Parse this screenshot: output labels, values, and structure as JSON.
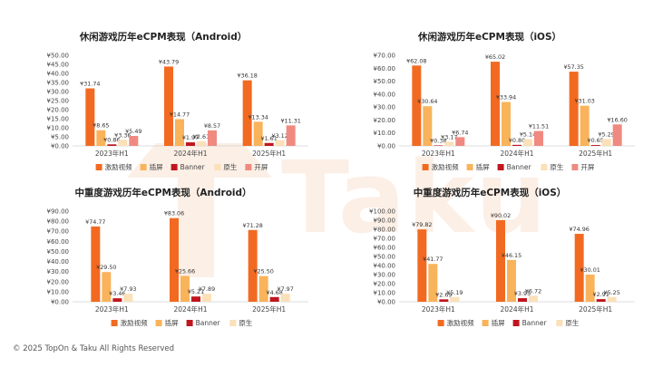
{
  "watermark": {
    "text": "Taku"
  },
  "footer": {
    "copyright": "© 2025 TopOn & Taku All Rights Reserved"
  },
  "colors": {
    "激励视频": "#F26A21",
    "插屏": "#F9B35B",
    "Banner": "#C0161E",
    "原生": "#FBE0B8",
    "开屏": "#F08A80"
  },
  "chart_data": [
    {
      "type": "bar",
      "title": "休闲游戏历年eCPM表现（Android）",
      "categories": [
        "2023年H1",
        "2024年H1",
        "2025年H1"
      ],
      "ylim": [
        0,
        50
      ],
      "yticks": [
        "¥0.00",
        "¥5.00",
        "¥10.00",
        "¥15.00",
        "¥20.00",
        "¥25.00",
        "¥30.00",
        "¥35.00",
        "¥40.00",
        "¥45.00",
        "¥50.00"
      ],
      "series": [
        {
          "name": "激励视频",
          "values": [
            31.74,
            43.79,
            36.18
          ],
          "labels": [
            "¥31.74",
            "¥43.79",
            "¥36.18"
          ]
        },
        {
          "name": "插屏",
          "values": [
            8.65,
            14.77,
            13.34
          ],
          "labels": [
            "¥8.65",
            "¥14.77",
            "¥13.34"
          ]
        },
        {
          "name": "Banner",
          "values": [
            0.86,
            1.97,
            1.61
          ],
          "labels": [
            "¥0.86",
            "¥1.97",
            "¥1.61"
          ]
        },
        {
          "name": "原生",
          "values": [
            3.36,
            2.61,
            3.12
          ],
          "labels": [
            "¥3.36",
            "¥2.61",
            "¥3.12"
          ]
        },
        {
          "name": "开屏",
          "values": [
            5.49,
            8.57,
            11.31
          ],
          "labels": [
            "¥5.49",
            "¥8.57",
            "¥11.31"
          ]
        }
      ],
      "legend": "bottom"
    },
    {
      "type": "bar",
      "title": "休闲游戏历年eCPM表现（iOS）",
      "categories": [
        "2023年H1",
        "2024年H1",
        "2025年H1"
      ],
      "ylim": [
        0,
        70
      ],
      "yticks": [
        "¥0.00",
        "¥10.00",
        "¥20.00",
        "¥30.00",
        "¥40.00",
        "¥50.00",
        "¥60.00",
        "¥70.00"
      ],
      "series": [
        {
          "name": "激励视频",
          "values": [
            62.08,
            65.02,
            57.35
          ],
          "labels": [
            "¥62.08",
            "¥65.02",
            "¥57.35"
          ]
        },
        {
          "name": "插屏",
          "values": [
            30.64,
            33.94,
            31.03
          ],
          "labels": [
            "¥30.64",
            "¥33.94",
            "¥31.03"
          ]
        },
        {
          "name": "Banner",
          "values": [
            0.38,
            0.8,
            0.65
          ],
          "labels": [
            "¥0.38",
            "¥0.80",
            "¥0.65"
          ]
        },
        {
          "name": "原生",
          "values": [
            3.17,
            5.14,
            5.29
          ],
          "labels": [
            "¥3.17",
            "¥5.14",
            "¥5.29"
          ]
        },
        {
          "name": "开屏",
          "values": [
            6.74,
            11.51,
            16.6
          ],
          "labels": [
            "¥6.74",
            "¥11.51",
            "¥16.60"
          ]
        }
      ],
      "legend": "bottom"
    },
    {
      "type": "bar",
      "title": "中重度游戏历年eCPM表现（Android）",
      "categories": [
        "2023年H1",
        "2024年H1",
        "2025年H1"
      ],
      "ylim": [
        0,
        90
      ],
      "yticks": [
        "¥0.00",
        "¥10.00",
        "¥20.00",
        "¥30.00",
        "¥40.00",
        "¥50.00",
        "¥60.00",
        "¥70.00",
        "¥80.00",
        "¥90.00"
      ],
      "series": [
        {
          "name": "激励视频",
          "values": [
            74.77,
            83.06,
            71.28
          ],
          "labels": [
            "¥74.77",
            "¥83.06",
            "¥71.28"
          ]
        },
        {
          "name": "插屏",
          "values": [
            29.5,
            25.66,
            25.5
          ],
          "labels": [
            "¥29.50",
            "¥25.66",
            "¥25.50"
          ]
        },
        {
          "name": "Banner",
          "values": [
            3.46,
            5.21,
            4.68
          ],
          "labels": [
            "¥3.46",
            "¥5.21",
            "¥4.68"
          ]
        },
        {
          "name": "原生",
          "values": [
            7.93,
            7.89,
            7.97
          ],
          "labels": [
            "¥7.93",
            "¥7.89",
            "¥7.97"
          ]
        }
      ],
      "legend": "bottom"
    },
    {
      "type": "bar",
      "title": "中重度游戏历年eCPM表现（iOS）",
      "categories": [
        "2023年H1",
        "2024年H1",
        "2025年H1"
      ],
      "ylim": [
        0,
        100
      ],
      "yticks": [
        "¥0.00",
        "¥10.00",
        "¥20.00",
        "¥30.00",
        "¥40.00",
        "¥50.00",
        "¥60.00",
        "¥70.00",
        "¥80.00",
        "¥90.00",
        "¥100.00"
      ],
      "series": [
        {
          "name": "激励视频",
          "values": [
            79.82,
            90.02,
            74.96
          ],
          "labels": [
            "¥79.82",
            "¥90.02",
            "¥74.96"
          ]
        },
        {
          "name": "插屏",
          "values": [
            41.77,
            46.15,
            30.01
          ],
          "labels": [
            "¥41.77",
            "¥46.15",
            "¥30.01"
          ]
        },
        {
          "name": "Banner",
          "values": [
            2.69,
            3.95,
            2.91
          ],
          "labels": [
            "¥2.69",
            "¥3.95",
            "¥2.91"
          ]
        },
        {
          "name": "原生",
          "values": [
            5.19,
            6.72,
            5.25
          ],
          "labels": [
            "¥5.19",
            "¥6.72",
            "¥5.25"
          ]
        }
      ],
      "legend": "bottom"
    }
  ]
}
